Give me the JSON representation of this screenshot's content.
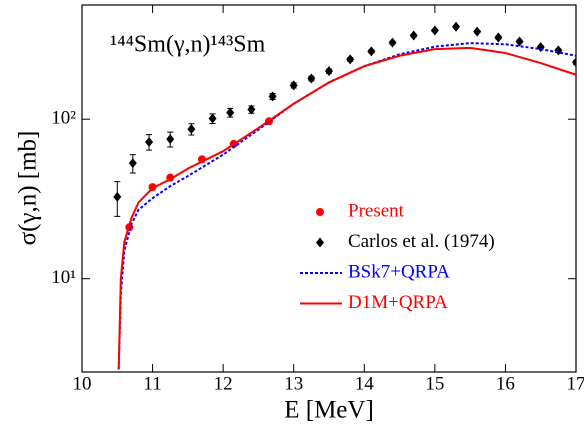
{
  "chart_data": {
    "type": "line",
    "annotation": "¹⁴⁴Sm(γ,n)¹⁴³Sm",
    "x_label": "E [MeV]",
    "y_label": "σ(γ,n) [mb]",
    "xlim": [
      10,
      17
    ],
    "xticks": [
      10,
      11,
      12,
      13,
      14,
      15,
      16,
      17
    ],
    "ylim": [
      2.6,
      520
    ],
    "log_y": true,
    "yticks": [
      {
        "value": 10,
        "label": "10¹"
      },
      {
        "value": 100,
        "label": "10²"
      }
    ],
    "legend": "lower-right",
    "series": [
      {
        "name": "Present",
        "color": "#ff0000",
        "style": "markers",
        "marker": "circle",
        "x": [
          10.67,
          11.0,
          11.25,
          11.7,
          12.15,
          12.65
        ],
        "values": [
          21,
          37.5,
          43,
          56,
          70,
          97
        ]
      },
      {
        "name": "Carlos et al. (1974)",
        "color": "#000000",
        "style": "markers",
        "marker": "diamond",
        "x": [
          10.5,
          10.72,
          10.95,
          11.25,
          11.55,
          11.85,
          12.1,
          12.4,
          12.7,
          13.0,
          13.25,
          13.5,
          13.8,
          14.1,
          14.4,
          14.7,
          15.0,
          15.3,
          15.6,
          15.9,
          16.2,
          16.5,
          16.75,
          17.0
        ],
        "values": [
          32.6,
          53,
          72,
          75,
          86.6,
          101,
          110,
          115,
          139,
          163,
          180,
          200,
          237,
          266,
          302,
          335,
          360,
          380,
          354,
          325,
          307,
          283,
          270,
          227
        ],
        "errors": [
          8,
          7,
          8,
          8,
          7,
          7,
          7,
          6,
          6,
          6,
          6,
          6,
          6,
          6,
          6,
          6,
          6,
          6,
          6,
          6,
          6,
          6,
          6,
          6
        ]
      },
      {
        "name": "BSk7+QRPA",
        "color": "#0000ff",
        "style": "dotted",
        "x": [
          10.52,
          10.55,
          10.6,
          10.7,
          10.8,
          11.0,
          11.25,
          11.5,
          12.0,
          12.5,
          13.0,
          13.5,
          14.0,
          14.5,
          15.0,
          15.5,
          16.0,
          16.5,
          17.0
        ],
        "values": [
          2.7,
          8,
          15,
          22,
          27,
          32,
          38,
          44,
          60,
          86,
          125,
          170,
          215,
          255,
          285,
          300,
          295,
          275,
          250
        ]
      },
      {
        "name": "D1M+QRPA",
        "color": "#ff0000",
        "style": "solid",
        "x": [
          10.52,
          10.55,
          10.6,
          10.7,
          10.8,
          11.0,
          11.25,
          11.5,
          12.0,
          12.5,
          13.0,
          13.5,
          14.0,
          14.5,
          15.0,
          15.5,
          16.0,
          16.5,
          17.0
        ],
        "values": [
          2.7,
          10,
          17,
          24,
          30,
          37,
          42,
          49,
          63,
          88,
          125,
          170,
          215,
          250,
          275,
          280,
          260,
          225,
          190
        ]
      }
    ]
  }
}
